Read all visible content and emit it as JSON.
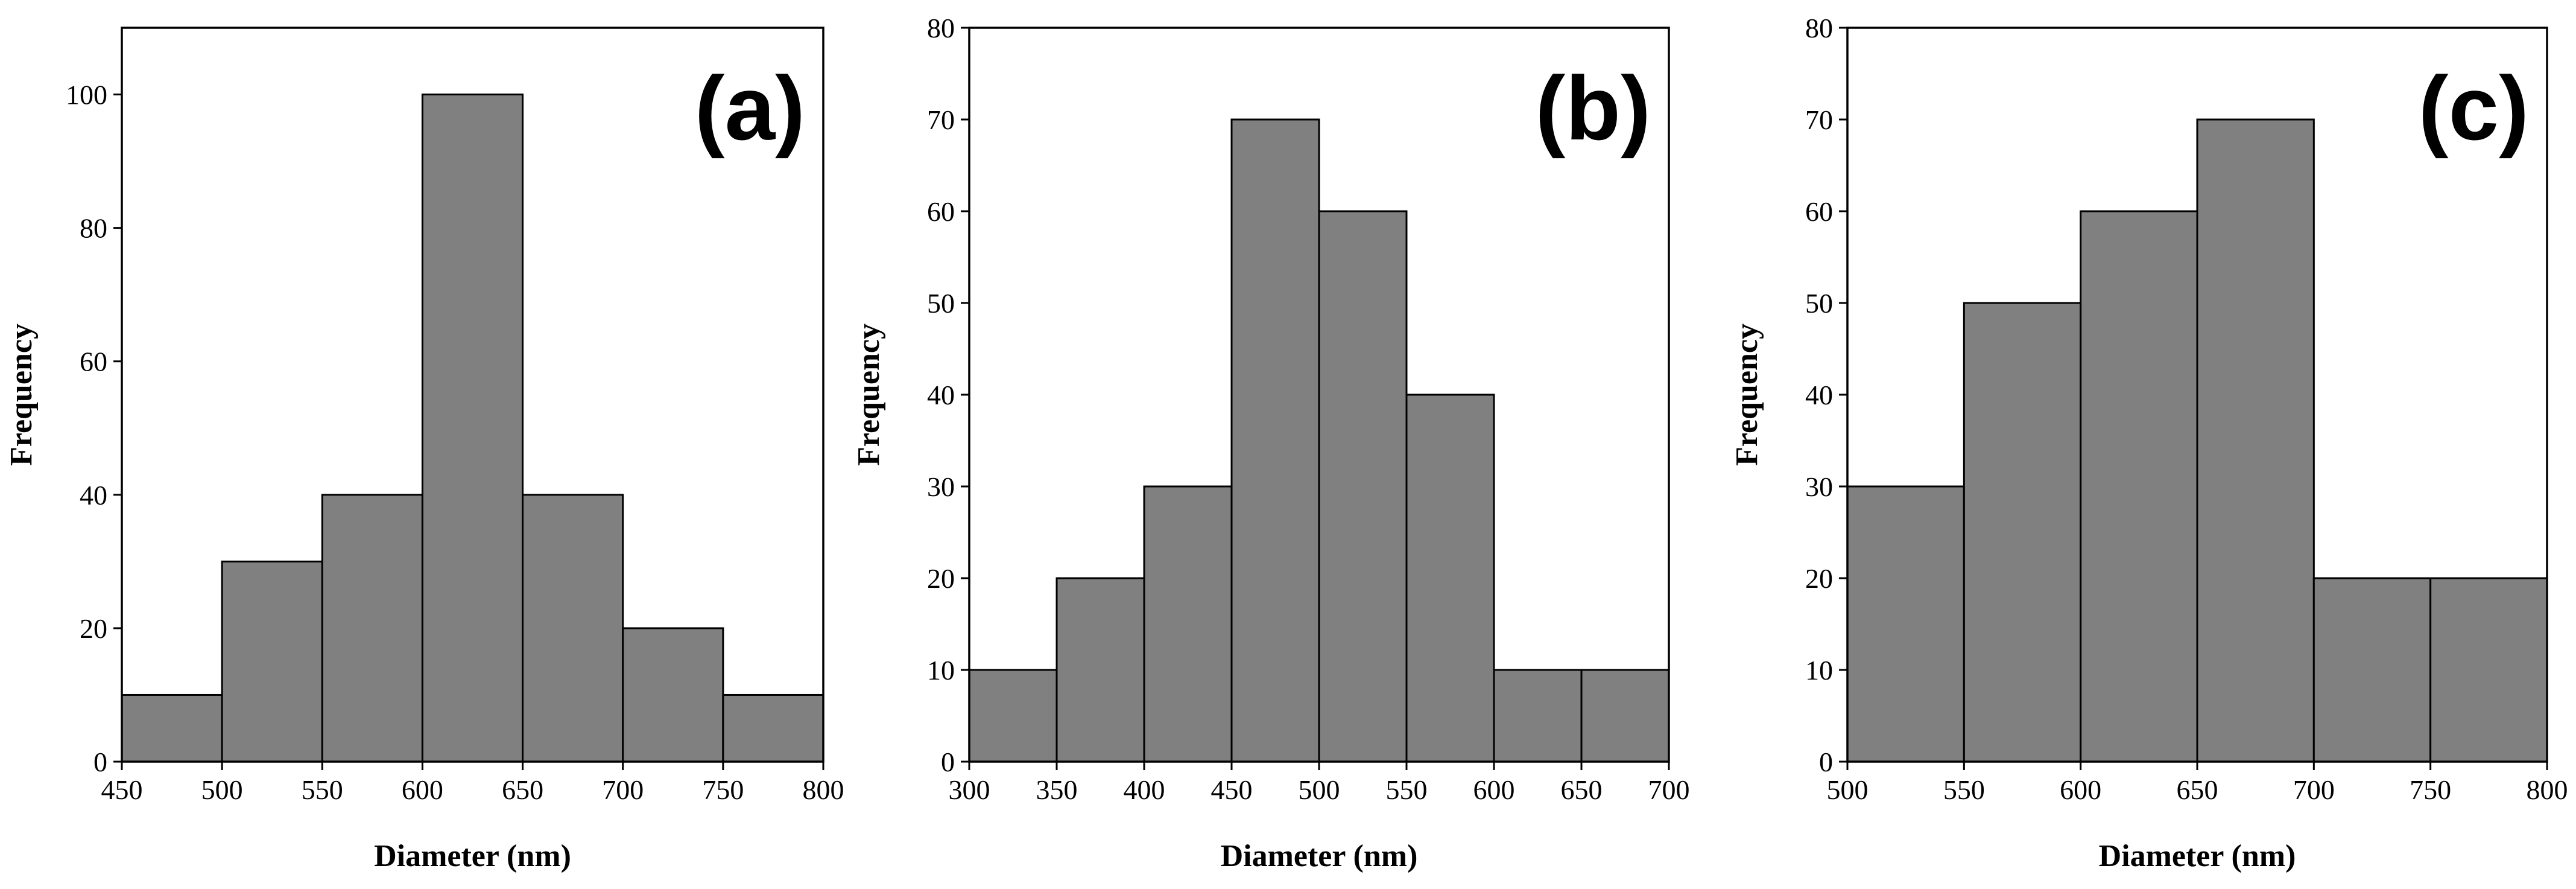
{
  "chart_data": [
    {
      "type": "bar",
      "panel_label": "(a)",
      "xlabel": "Diameter (nm)",
      "ylabel": "Frequency",
      "xlim": [
        450,
        800
      ],
      "ylim": [
        0,
        110
      ],
      "xticks": [
        450,
        500,
        550,
        600,
        650,
        700,
        750,
        800
      ],
      "yticks": [
        0,
        20,
        40,
        60,
        80,
        100
      ],
      "bins": [
        [
          450,
          500
        ],
        [
          500,
          550
        ],
        [
          550,
          600
        ],
        [
          600,
          650
        ],
        [
          650,
          700
        ],
        [
          700,
          750
        ],
        [
          750,
          800
        ]
      ],
      "values": [
        10,
        30,
        40,
        100,
        40,
        20,
        10
      ],
      "bar_color": "#808080"
    },
    {
      "type": "bar",
      "panel_label": "(b)",
      "xlabel": "Diameter (nm)",
      "ylabel": "Frequency",
      "xlim": [
        300,
        700
      ],
      "ylim": [
        0,
        80
      ],
      "xticks": [
        300,
        350,
        400,
        450,
        500,
        550,
        600,
        650,
        700
      ],
      "yticks": [
        0,
        10,
        20,
        30,
        40,
        50,
        60,
        70,
        80
      ],
      "bins": [
        [
          300,
          350
        ],
        [
          350,
          400
        ],
        [
          400,
          450
        ],
        [
          450,
          500
        ],
        [
          500,
          550
        ],
        [
          550,
          600
        ],
        [
          600,
          650
        ],
        [
          650,
          700
        ]
      ],
      "values": [
        10,
        20,
        30,
        70,
        60,
        40,
        10,
        10
      ],
      "bar_color": "#808080"
    },
    {
      "type": "bar",
      "panel_label": "(c)",
      "xlabel": "Diameter (nm)",
      "ylabel": "Frequency",
      "xlim": [
        500,
        800
      ],
      "ylim": [
        0,
        80
      ],
      "xticks": [
        500,
        550,
        600,
        650,
        700,
        750,
        800
      ],
      "yticks": [
        0,
        10,
        20,
        30,
        40,
        50,
        60,
        70,
        80
      ],
      "bins": [
        [
          500,
          550
        ],
        [
          550,
          600
        ],
        [
          600,
          650
        ],
        [
          650,
          700
        ],
        [
          700,
          750
        ],
        [
          750,
          800
        ]
      ],
      "values": [
        30,
        50,
        60,
        70,
        20,
        20
      ],
      "bar_color": "#808080"
    }
  ]
}
